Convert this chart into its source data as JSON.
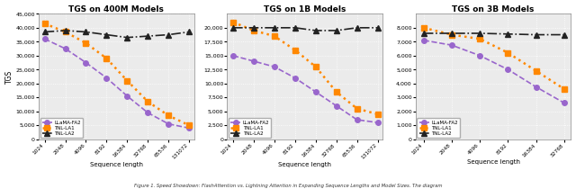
{
  "titles": [
    "TGS on 400M Models",
    "TGS on 1B Models",
    "TGS on 3B Models"
  ],
  "xlabel": "Sequence length",
  "ylabel": "TGS",
  "x_ticks_400M": [
    1024,
    2048,
    4096,
    8192,
    16384,
    32768,
    65536,
    131072
  ],
  "x_ticks_1B": [
    1024,
    2048,
    4096,
    8192,
    16384,
    32768,
    65536,
    131072
  ],
  "x_ticks_3B": [
    1024,
    2048,
    4096,
    8192,
    16384,
    32768
  ],
  "series": {
    "LLaMA-FA2": {
      "color": "#9966cc",
      "marker": "o",
      "linestyle": "--",
      "linewidth": 1.2,
      "markersize": 4
    },
    "TNL-LA1": {
      "color": "#ff8800",
      "marker": "s",
      "linestyle": ":",
      "linewidth": 1.8,
      "markersize": 5
    },
    "TNL-LA2": {
      "color": "#222222",
      "marker": "^",
      "linestyle": "-.",
      "linewidth": 1.2,
      "markersize": 4
    }
  },
  "data_400M": {
    "x": [
      1024,
      2048,
      4096,
      8192,
      16384,
      32768,
      65536,
      131072
    ],
    "LLaMA-FA2": [
      36000,
      32500,
      27500,
      22000,
      15500,
      9500,
      5500,
      4000
    ],
    "TNL-LA1": [
      41500,
      38500,
      34500,
      29000,
      21000,
      13500,
      8500,
      5000
    ],
    "TNL-LA2": [
      38500,
      39000,
      38500,
      37500,
      36500,
      37000,
      37500,
      38500
    ]
  },
  "data_1B": {
    "x": [
      1024,
      2048,
      4096,
      8192,
      16384,
      32768,
      65536,
      131072
    ],
    "LLaMA-FA2": [
      15000,
      14000,
      13000,
      11000,
      8500,
      6000,
      3500,
      3000
    ],
    "TNL-LA1": [
      21000,
      19500,
      18500,
      16000,
      13000,
      8500,
      5500,
      4500
    ],
    "TNL-LA2": [
      20000,
      20000,
      20000,
      20000,
      19500,
      19500,
      20000,
      20000
    ]
  },
  "data_3B": {
    "x": [
      1024,
      2048,
      4096,
      8192,
      16384,
      32768
    ],
    "LLaMA-FA2": [
      7100,
      6750,
      6000,
      5000,
      3750,
      2600
    ],
    "TNL-LA1": [
      8000,
      7500,
      7200,
      6200,
      4900,
      3600
    ],
    "TNL-LA2": [
      7600,
      7600,
      7600,
      7550,
      7500,
      7500
    ]
  },
  "ylim_400M": [
    0,
    45000
  ],
  "ylim_1B": [
    0,
    22500
  ],
  "ylim_3B": [
    0,
    9000
  ],
  "yticks_400M": [
    0,
    5000,
    10000,
    15000,
    20000,
    25000,
    30000,
    35000,
    40000,
    45000
  ],
  "yticks_1B": [
    0,
    2500,
    5000,
    7500,
    10000,
    12500,
    15000,
    17500,
    20000
  ],
  "yticks_3B": [
    0,
    1000,
    2000,
    3000,
    4000,
    5000,
    6000,
    7000,
    8000
  ],
  "caption": "Figure 1. Speed Showdown: FlashAttention vs. Lightning Attention in Expanding Sequence Lengths and Model Sizes. The diagram",
  "bg_color": "#ebebeb"
}
